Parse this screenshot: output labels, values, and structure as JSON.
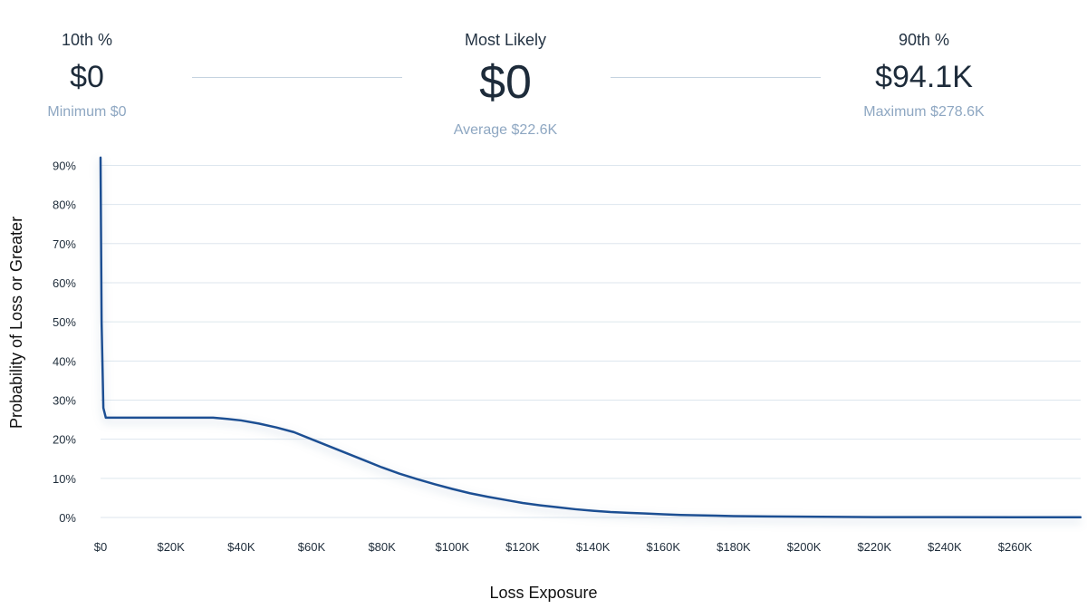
{
  "summary": {
    "left": {
      "label": "10th %",
      "value": "$0",
      "sub": "Minimum $0"
    },
    "center": {
      "label": "Most Likely",
      "value": "$0",
      "sub": "Average $22.6K"
    },
    "right": {
      "label": "90th %",
      "value": "$94.1K",
      "sub": "Maximum $278.6K"
    }
  },
  "chart_data": {
    "type": "line",
    "title": "",
    "xlabel": "Loss Exposure",
    "ylabel": "Probability of Loss or Greater",
    "xlim": [
      0,
      278600
    ],
    "ylim": [
      0,
      92
    ],
    "grid": true,
    "x_ticks": [
      {
        "value": 0,
        "label": "$0"
      },
      {
        "value": 20000,
        "label": "$20K"
      },
      {
        "value": 40000,
        "label": "$40K"
      },
      {
        "value": 60000,
        "label": "$60K"
      },
      {
        "value": 80000,
        "label": "$80K"
      },
      {
        "value": 100000,
        "label": "$100K"
      },
      {
        "value": 120000,
        "label": "$120K"
      },
      {
        "value": 140000,
        "label": "$140K"
      },
      {
        "value": 160000,
        "label": "$160K"
      },
      {
        "value": 180000,
        "label": "$180K"
      },
      {
        "value": 200000,
        "label": "$200K"
      },
      {
        "value": 220000,
        "label": "$220K"
      },
      {
        "value": 240000,
        "label": "$240K"
      },
      {
        "value": 260000,
        "label": "$260K"
      }
    ],
    "y_ticks": [
      {
        "value": 0,
        "label": "0%"
      },
      {
        "value": 10,
        "label": "10%"
      },
      {
        "value": 20,
        "label": "20%"
      },
      {
        "value": 30,
        "label": "30%"
      },
      {
        "value": 40,
        "label": "40%"
      },
      {
        "value": 50,
        "label": "50%"
      },
      {
        "value": 60,
        "label": "60%"
      },
      {
        "value": 70,
        "label": "70%"
      },
      {
        "value": 80,
        "label": "80%"
      },
      {
        "value": 90,
        "label": "90%"
      }
    ],
    "series": [
      {
        "color": "#1f4f93",
        "x": [
          0,
          300,
          800,
          1500,
          5000,
          15000,
          25000,
          32000,
          36000,
          40000,
          45000,
          50000,
          55000,
          60000,
          65000,
          70000,
          75000,
          80000,
          85000,
          90000,
          95000,
          100000,
          105000,
          110000,
          115000,
          120000,
          125000,
          130000,
          135000,
          140000,
          145000,
          150000,
          155000,
          160000,
          165000,
          170000,
          175000,
          180000,
          190000,
          200000,
          210000,
          220000,
          240000,
          260000,
          278600
        ],
        "y": [
          92,
          50,
          28,
          25.5,
          25.5,
          25.5,
          25.5,
          25.5,
          25.2,
          24.8,
          24.0,
          23.0,
          21.8,
          20.0,
          18.2,
          16.4,
          14.6,
          12.8,
          11.2,
          9.8,
          8.5,
          7.3,
          6.2,
          5.3,
          4.5,
          3.7,
          3.1,
          2.6,
          2.1,
          1.7,
          1.4,
          1.2,
          1.0,
          0.8,
          0.65,
          0.55,
          0.45,
          0.35,
          0.25,
          0.2,
          0.15,
          0.1,
          0.08,
          0.05,
          0.05
        ]
      }
    ]
  }
}
